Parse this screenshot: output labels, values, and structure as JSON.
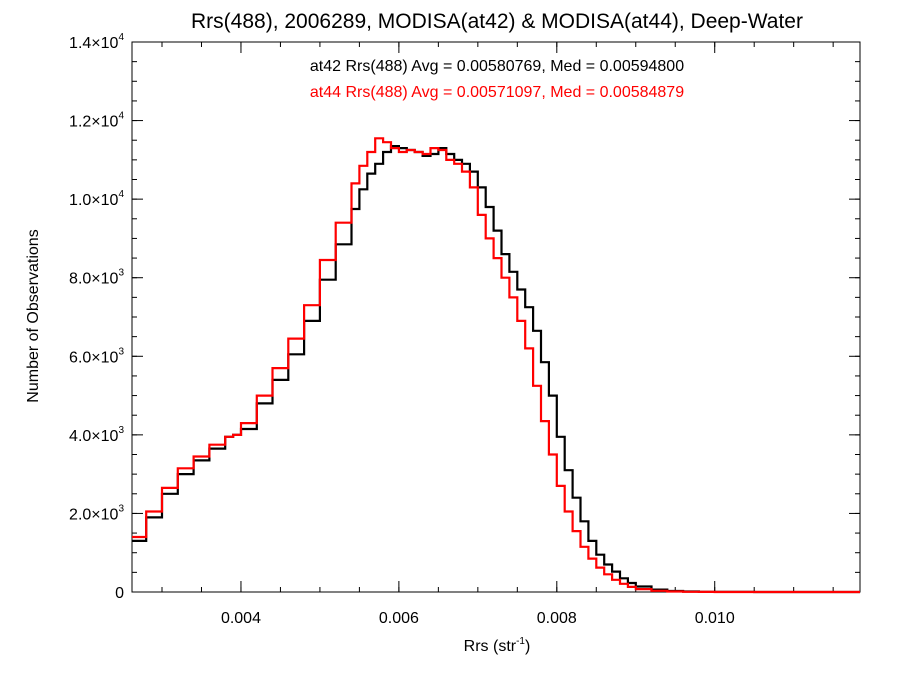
{
  "chart_data": {
    "type": "line",
    "title": "Rrs(488), 2006289, MODISA(at42) & MODISA(at44), Deep-Water",
    "xlabel": {
      "text": "Rrs (str",
      "sup": "-1",
      "close": ")"
    },
    "ylabel": "Number of Observations",
    "xlim": [
      0.00262,
      0.01184
    ],
    "ylim": [
      0,
      14000
    ],
    "x_ticks": [
      {
        "value": 0.004,
        "label": "0.004"
      },
      {
        "value": 0.006,
        "label": "0.006"
      },
      {
        "value": 0.008,
        "label": "0.008"
      },
      {
        "value": 0.01,
        "label": "0.010"
      }
    ],
    "x_minor_step": 0.0005,
    "y_ticks": [
      {
        "value": 0,
        "mant": "0",
        "exp": ""
      },
      {
        "value": 2000,
        "mant": "2.0×10",
        "exp": "3"
      },
      {
        "value": 4000,
        "mant": "4.0×10",
        "exp": "3"
      },
      {
        "value": 6000,
        "mant": "6.0×10",
        "exp": "3"
      },
      {
        "value": 8000,
        "mant": "8.0×10",
        "exp": "3"
      },
      {
        "value": 10000,
        "mant": "1.0×10",
        "exp": "4"
      },
      {
        "value": 12000,
        "mant": "1.2×10",
        "exp": "4"
      },
      {
        "value": 14000,
        "mant": "1.4×10",
        "exp": "4"
      }
    ],
    "y_minor_step": 500,
    "line_style": "step",
    "annotations": [
      {
        "text": "at42 Rrs(488) Avg = 0.00580769, Med = 0.00594800",
        "color": "#000000"
      },
      {
        "text": "at44 Rrs(488) Avg = 0.00571097, Med = 0.00584879",
        "color": "#ff0000"
      }
    ],
    "series": [
      {
        "color": "#000000",
        "x": [
          0.00262,
          0.0028,
          0.003,
          0.0032,
          0.0034,
          0.0036,
          0.0038,
          0.0039,
          0.004,
          0.0042,
          0.0044,
          0.0046,
          0.0048,
          0.005,
          0.0052,
          0.0054,
          0.0055,
          0.0056,
          0.0057,
          0.0058,
          0.0059,
          0.006,
          0.0061,
          0.0062,
          0.0063,
          0.0064,
          0.0065,
          0.0066,
          0.0067,
          0.0068,
          0.0069,
          0.007,
          0.0071,
          0.0072,
          0.0073,
          0.0074,
          0.0075,
          0.0076,
          0.0077,
          0.0078,
          0.0079,
          0.008,
          0.0081,
          0.0082,
          0.0083,
          0.0084,
          0.0085,
          0.0086,
          0.0087,
          0.0088,
          0.0089,
          0.009,
          0.0092,
          0.0094,
          0.0096,
          0.0098,
          0.01,
          0.0105,
          0.011,
          0.01184
        ],
        "y": [
          1300,
          1900,
          2500,
          3000,
          3350,
          3650,
          3950,
          4000,
          4150,
          4800,
          5400,
          6050,
          6900,
          7950,
          8850,
          9750,
          10250,
          10650,
          10900,
          11200,
          11350,
          11300,
          11250,
          11200,
          11100,
          11150,
          11300,
          11150,
          11000,
          10900,
          10700,
          10300,
          9800,
          9200,
          8600,
          8150,
          7700,
          7250,
          6650,
          5850,
          5000,
          3950,
          3100,
          2400,
          1800,
          1300,
          950,
          700,
          520,
          350,
          230,
          140,
          60,
          25,
          12,
          6,
          3,
          1,
          0,
          0
        ]
      },
      {
        "color": "#ff0000",
        "x": [
          0.00262,
          0.0028,
          0.003,
          0.0032,
          0.0034,
          0.0036,
          0.0038,
          0.0039,
          0.004,
          0.0042,
          0.0044,
          0.0046,
          0.0048,
          0.005,
          0.0052,
          0.0054,
          0.0055,
          0.0056,
          0.0057,
          0.0058,
          0.0059,
          0.006,
          0.0061,
          0.0062,
          0.0063,
          0.0064,
          0.0065,
          0.0066,
          0.0067,
          0.0068,
          0.0069,
          0.007,
          0.0071,
          0.0072,
          0.0073,
          0.0074,
          0.0075,
          0.0076,
          0.0077,
          0.0078,
          0.0079,
          0.008,
          0.0081,
          0.0082,
          0.0083,
          0.0084,
          0.0085,
          0.0086,
          0.0087,
          0.0088,
          0.0089,
          0.009,
          0.0092,
          0.0094,
          0.0096,
          0.0098,
          0.01,
          0.0105,
          0.011,
          0.01184
        ],
        "y": [
          1400,
          2050,
          2650,
          3150,
          3450,
          3750,
          3950,
          4000,
          4300,
          5000,
          5700,
          6450,
          7300,
          8450,
          9400,
          10400,
          10850,
          11200,
          11550,
          11450,
          11300,
          11200,
          11250,
          11200,
          11150,
          11300,
          11250,
          11000,
          10900,
          10700,
          10300,
          9600,
          9000,
          8500,
          8000,
          7500,
          6900,
          6200,
          5250,
          4350,
          3500,
          2700,
          2050,
          1550,
          1150,
          850,
          620,
          450,
          310,
          210,
          130,
          75,
          30,
          12,
          5,
          2,
          1,
          0,
          0,
          0
        ]
      }
    ]
  }
}
